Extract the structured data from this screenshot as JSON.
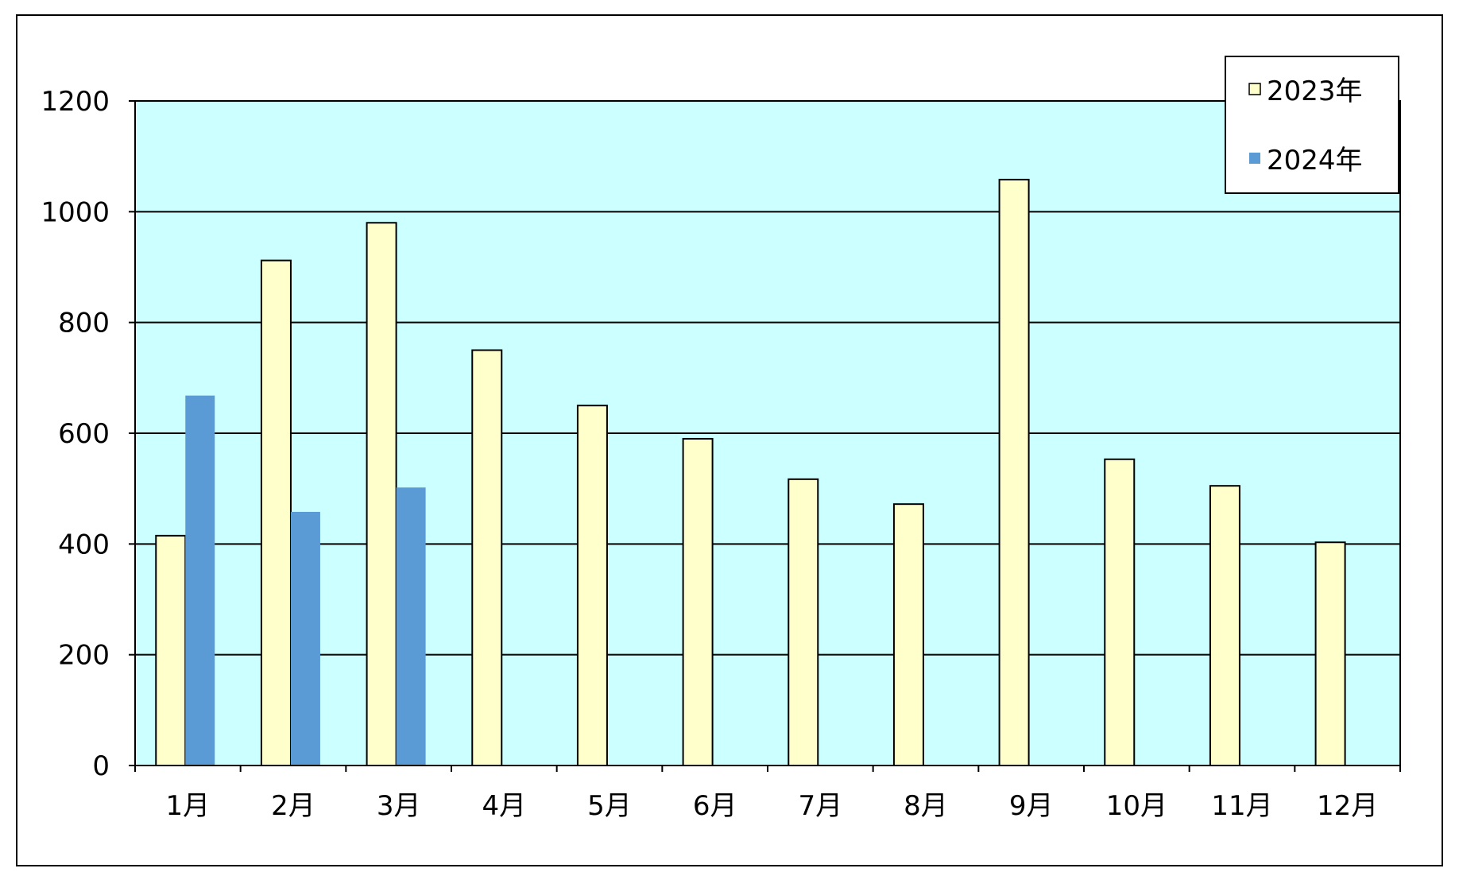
{
  "chart_data": {
    "type": "bar",
    "categories": [
      "1月",
      "2月",
      "3月",
      "4月",
      "5月",
      "6月",
      "7月",
      "8月",
      "9月",
      "10月",
      "11月",
      "12月"
    ],
    "series": [
      {
        "name": "2023年",
        "color": "#ffffcc",
        "values": [
          415,
          912,
          980,
          750,
          650,
          590,
          517,
          472,
          1058,
          553,
          505,
          403
        ]
      },
      {
        "name": "2024年",
        "color": "#5b9bd5",
        "values": [
          668,
          458,
          502,
          null,
          null,
          null,
          null,
          null,
          null,
          null,
          null,
          null
        ]
      }
    ],
    "ylim": [
      0,
      1200
    ],
    "yticks": [
      "0",
      "200",
      "400",
      "600",
      "800",
      "1000",
      "1200"
    ],
    "grid": true,
    "legend_position": "top-right",
    "plot_background": "#ccffff"
  }
}
